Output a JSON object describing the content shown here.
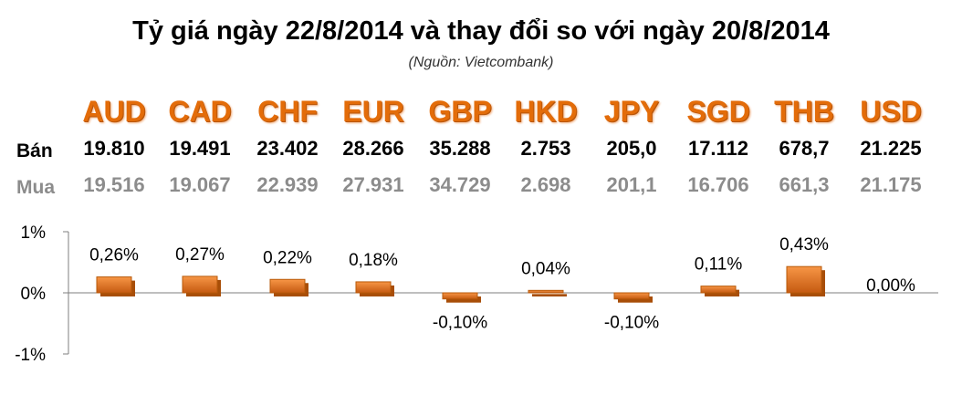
{
  "title": "Tỷ giá ngày 22/8/2014 và thay đổi so với ngày 20/8/2014",
  "source": "(Nguồn: Vietcombank)",
  "currencies": [
    "AUD",
    "CAD",
    "CHF",
    "EUR",
    "GBP",
    "HKD",
    "JPY",
    "SGD",
    "THB",
    "USD"
  ],
  "sell": {
    "label": "Bán",
    "values": [
      "19.810",
      "19.491",
      "23.402",
      "28.266",
      "35.288",
      "2.753",
      "205,0",
      "17.112",
      "678,7",
      "21.225"
    ]
  },
  "buy": {
    "label": "Mua",
    "values": [
      "19.516",
      "19.067",
      "22.939",
      "27.931",
      "34.729",
      "2.698",
      "201,1",
      "16.706",
      "661,3",
      "21.175"
    ]
  },
  "colors": {
    "currency": "#e36c09",
    "bar": "#e46c0a",
    "bar_dark": "#a84e08",
    "sell": "#000000",
    "buy": "#8c8c8c"
  },
  "chart_data": {
    "type": "bar",
    "categories": [
      "AUD",
      "CAD",
      "CHF",
      "EUR",
      "GBP",
      "HKD",
      "JPY",
      "SGD",
      "THB",
      "USD"
    ],
    "values": [
      0.26,
      0.27,
      0.22,
      0.18,
      -0.1,
      0.04,
      -0.1,
      0.11,
      0.43,
      0.0
    ],
    "data_labels": [
      "0,26%",
      "0,27%",
      "0,22%",
      "0,18%",
      "-0,10%",
      "0,04%",
      "-0,10%",
      "0,11%",
      "0,43%",
      "0,00%"
    ],
    "ylim": [
      -1,
      1
    ],
    "ytick_labels": [
      "1%",
      "0%",
      "-1%"
    ],
    "ytick_values": [
      1,
      0,
      -1
    ],
    "grid": false
  }
}
